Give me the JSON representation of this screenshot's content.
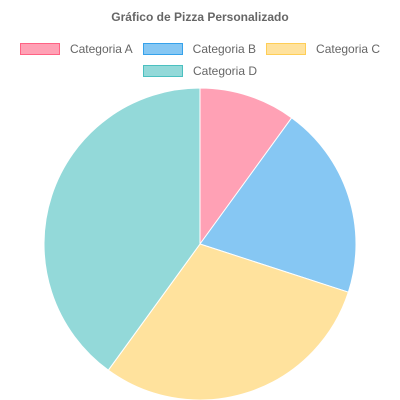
{
  "chart_data": {
    "type": "pie",
    "title": "Gráfico de Pizza Personalizado",
    "categories": [
      "Categoria A",
      "Categoria B",
      "Categoria C",
      "Categoria D"
    ],
    "values": [
      10,
      20,
      30,
      40
    ],
    "colors": [
      "#ffa1b5",
      "#86c7f3",
      "#ffe29d",
      "#93d9d9"
    ],
    "border_colors": [
      "#ff6384",
      "#36a2eb",
      "#ffce56",
      "#4bc0c0"
    ],
    "legend_position": "top"
  }
}
